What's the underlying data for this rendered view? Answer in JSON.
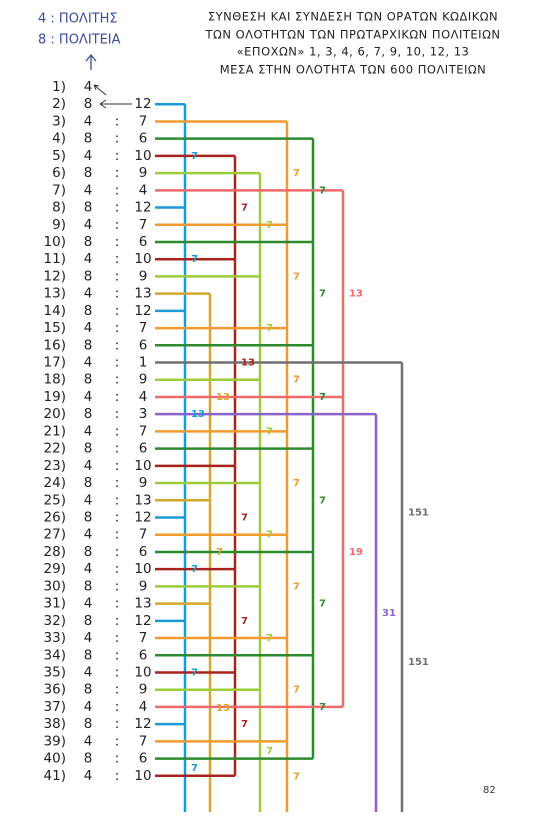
{
  "header": {
    "left": [
      "4 : ΠΟΛΙΤΗΣ",
      "8 : ΠΟΛΙΤΕΙΑ"
    ],
    "title": [
      "ΣΥΝΘΕΣΗ ΚΑΙ ΣΥΝΔΕΣΗ ΤΩΝ ΟΡΑΤΩΝ ΚΩΔΙΚΩΝ",
      "ΤΩΝ ΟΛΟΤΗΤΩΝ ΤΩΝ ΠΡΩΤΑΡΧΙΚΩΝ ΠΟΛΙΤΕΙΩΝ",
      "«ΕΠΟΧΩΝ» 1, 3, 4, 6, 7, 9, 10, 12, 13",
      "ΜΕΣΑ ΣΤΗΝ ΟΛΟΤΗΤΑ ΤΩΝ 600 ΠΟΛΙΤΕΙΩΝ"
    ]
  },
  "sep": ":",
  "rows": [
    [
      "1)",
      4
    ],
    [
      "2)",
      8,
      12
    ],
    [
      "3)",
      4,
      7
    ],
    [
      "4)",
      8,
      6
    ],
    [
      "5)",
      4,
      10
    ],
    [
      "6)",
      8,
      9
    ],
    [
      "7)",
      4,
      4
    ],
    [
      "8)",
      8,
      12
    ],
    [
      "9)",
      4,
      7
    ],
    [
      "10)",
      8,
      6
    ],
    [
      "11)",
      4,
      10
    ],
    [
      "12)",
      8,
      9
    ],
    [
      "13)",
      4,
      13
    ],
    [
      "14)",
      8,
      12
    ],
    [
      "15)",
      4,
      7
    ],
    [
      "16)",
      8,
      6
    ],
    [
      "17)",
      4,
      1
    ],
    [
      "18)",
      8,
      9
    ],
    [
      "19)",
      4,
      4
    ],
    [
      "20)",
      8,
      3
    ],
    [
      "21)",
      4,
      7
    ],
    [
      "22)",
      8,
      6
    ],
    [
      "23)",
      4,
      10
    ],
    [
      "24)",
      8,
      9
    ],
    [
      "25)",
      4,
      13
    ],
    [
      "26)",
      8,
      12
    ],
    [
      "27)",
      4,
      7
    ],
    [
      "28)",
      8,
      6
    ],
    [
      "29)",
      4,
      10
    ],
    [
      "30)",
      8,
      9
    ],
    [
      "31)",
      4,
      13
    ],
    [
      "32)",
      8,
      12
    ],
    [
      "33)",
      4,
      7
    ],
    [
      "34)",
      8,
      6
    ],
    [
      "35)",
      4,
      10
    ],
    [
      "36)",
      8,
      9
    ],
    [
      "37)",
      4,
      4
    ],
    [
      "38)",
      8,
      12
    ],
    [
      "39)",
      4,
      7
    ],
    [
      "40)",
      8,
      6
    ],
    [
      "41)",
      4,
      10
    ]
  ],
  "groups": [
    {
      "value": 12,
      "color": "#1b9ad8",
      "labels": [
        "7",
        "7",
        "13",
        "7",
        "7",
        "7"
      ]
    },
    {
      "value": 13,
      "color": "#d4a72c",
      "labels": [
        "13",
        "7",
        "13"
      ]
    },
    {
      "value": 10,
      "color": "#a8231c",
      "labels": [
        "7",
        "13",
        "7",
        "7",
        "7"
      ]
    },
    {
      "value": 9,
      "color": "#9ccc3a",
      "labels": [
        "7",
        "7",
        "7",
        "7",
        "7",
        "7"
      ]
    },
    {
      "value": 7,
      "color": "#f29a2e",
      "labels": [
        "7",
        "7",
        "7",
        "7",
        "7",
        "7",
        "7"
      ]
    },
    {
      "value": 6,
      "color": "#2e8a2e",
      "labels": [
        "7",
        "7",
        "7",
        "7",
        "7",
        "7"
      ]
    },
    {
      "value": 4,
      "color": "#f06a6a",
      "labels": [
        "13",
        "19"
      ]
    },
    {
      "value": 3,
      "color": "#8a62c8",
      "labels": [
        "31"
      ]
    },
    {
      "value": 1,
      "color": "#707070",
      "labels": [
        "151",
        "151"
      ]
    }
  ],
  "page_number": "82"
}
